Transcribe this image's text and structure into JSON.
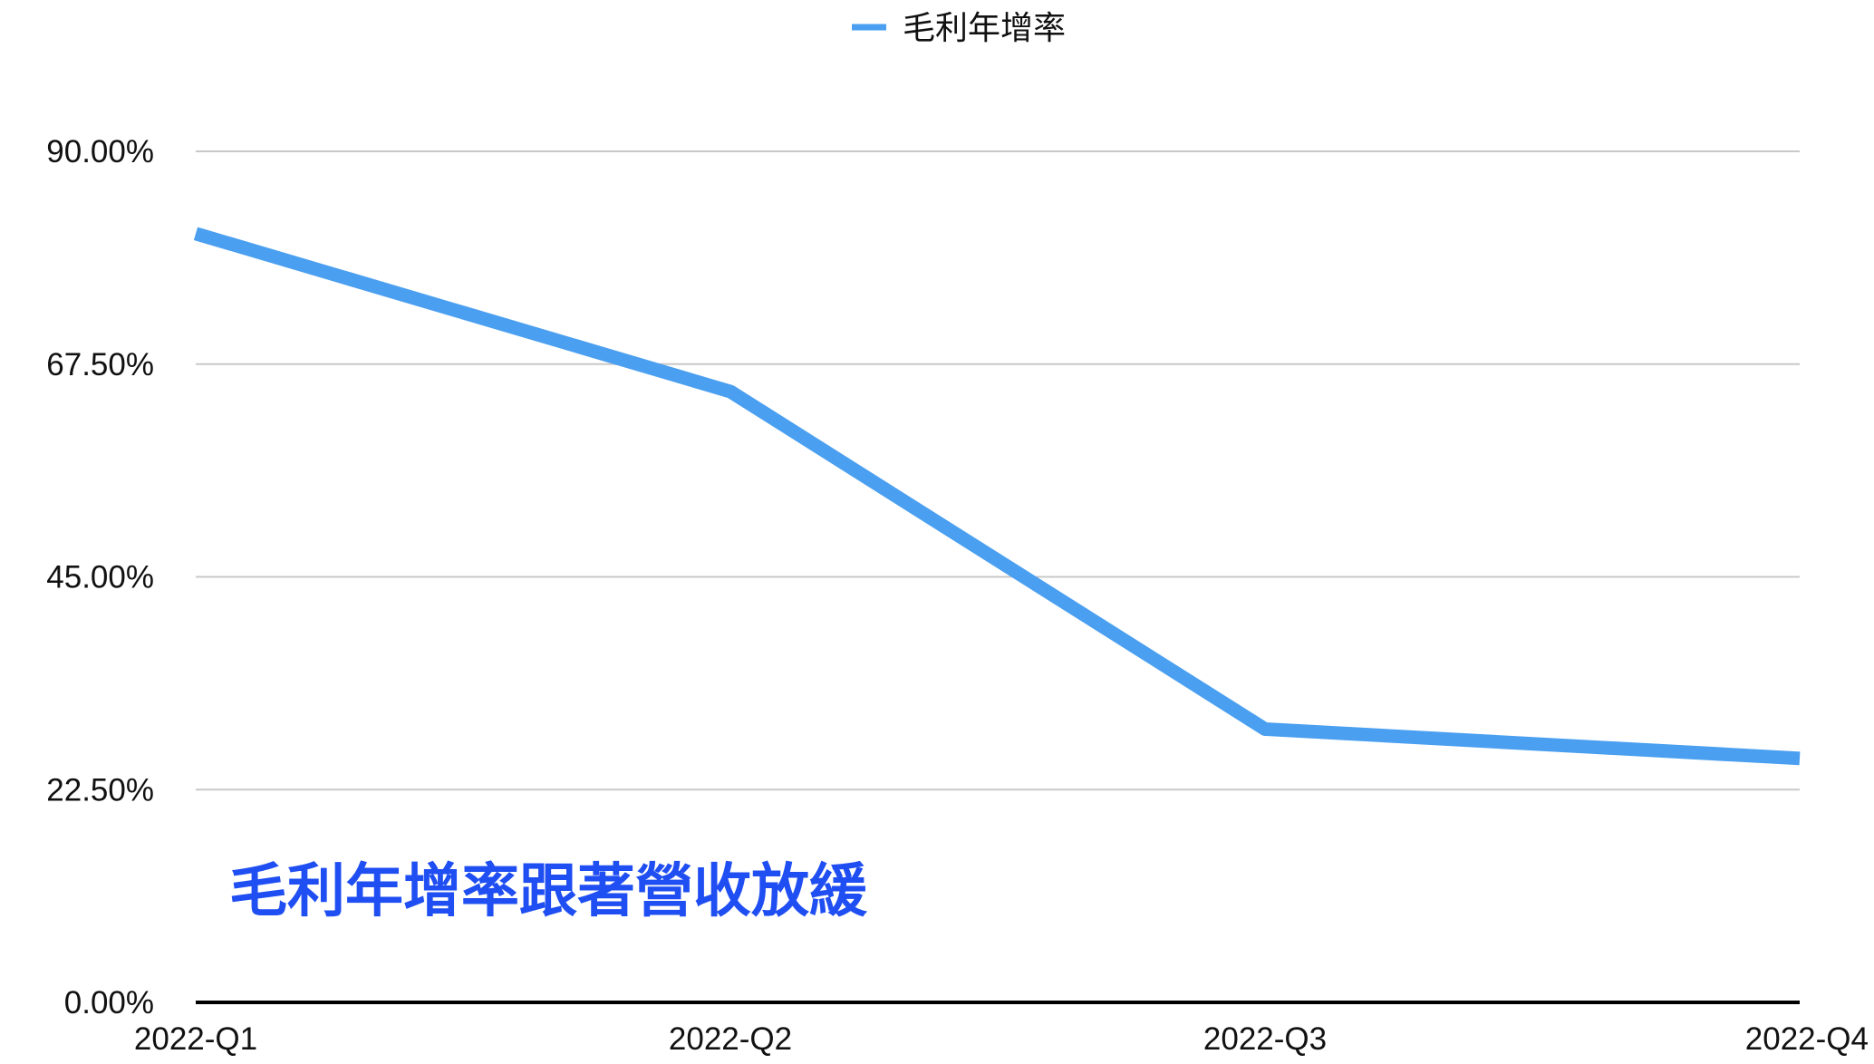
{
  "chart_data": {
    "type": "line",
    "categories": [
      "2022-Q1",
      "2022-Q2",
      "2022-Q3",
      "2022-Q4"
    ],
    "series": [
      {
        "name": "毛利年增率",
        "values": [
          81.3,
          64.6,
          28.9,
          25.8
        ],
        "color": "#4a9ff0"
      }
    ],
    "y_ticks": [
      {
        "value": 0,
        "label": "0.00%"
      },
      {
        "value": 22.5,
        "label": "22.50%"
      },
      {
        "value": 45,
        "label": "45.00%"
      },
      {
        "value": 67.5,
        "label": "67.50%"
      },
      {
        "value": 90,
        "label": "90.00%"
      }
    ],
    "ylim": [
      0,
      90
    ],
    "ylabel_unit": "%",
    "grid": true,
    "legend_position": "top-center",
    "annotation": {
      "text": "毛利年增率跟著營收放緩",
      "color": "#1f4ef2"
    }
  }
}
